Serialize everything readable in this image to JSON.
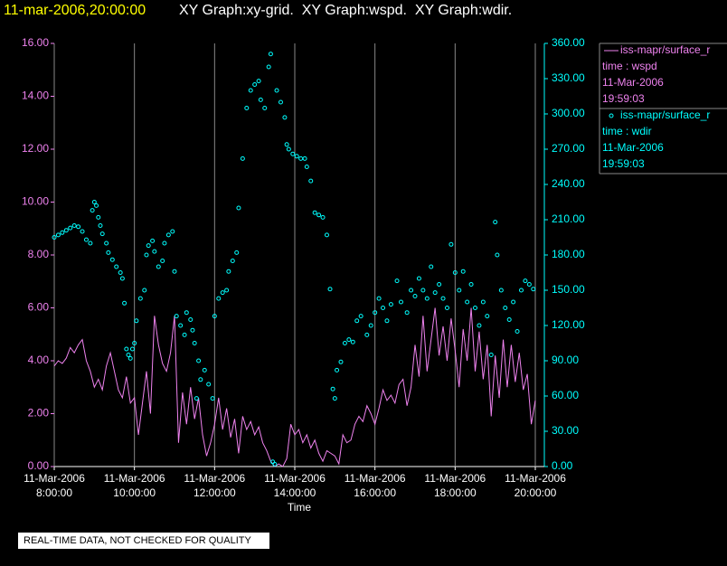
{
  "header": {
    "timestamp": "11-mar-2006,20:00:00",
    "title": "XY Graph:xy-grid.  XY Graph:wspd.  XY Graph:wdir."
  },
  "footer_note": "REAL-TIME DATA, NOT CHECKED FOR QUALITY",
  "chart_data": {
    "type": "line",
    "xlabel": "Time",
    "xlim": [
      8,
      20
    ],
    "xticks": [
      {
        "value": 8,
        "label": "11-Mar-2006 8:00:00"
      },
      {
        "value": 10,
        "label": "11-Mar-2006 10:00:00"
      },
      {
        "value": 12,
        "label": "11-Mar-2006 12:00:00"
      },
      {
        "value": 14,
        "label": "11-Mar-2006 14:00:00"
      },
      {
        "value": 16,
        "label": "11-Mar-2006 16:00:00"
      },
      {
        "value": 18,
        "label": "11-Mar-2006 18:00:00"
      },
      {
        "value": 20,
        "label": "11-Mar-2006 20:00:00"
      }
    ],
    "ylim": [
      0,
      16
    ],
    "yticks": [
      {
        "value": 0,
        "label": "0.00"
      },
      {
        "value": 2,
        "label": "2.00"
      },
      {
        "value": 4,
        "label": "4.00"
      },
      {
        "value": 6,
        "label": "6.00"
      },
      {
        "value": 8,
        "label": "8.00"
      },
      {
        "value": 10,
        "label": "10.00"
      },
      {
        "value": 12,
        "label": "12.00"
      },
      {
        "value": 14,
        "label": "14.00"
      },
      {
        "value": 16,
        "label": "16.00"
      }
    ],
    "y2lim": [
      0,
      360
    ],
    "y2ticks": [
      {
        "value": 0,
        "label": "0.00"
      },
      {
        "value": 30,
        "label": "30.00"
      },
      {
        "value": 60,
        "label": "60.00"
      },
      {
        "value": 90,
        "label": "90.00"
      },
      {
        "value": 120,
        "label": "120.00"
      },
      {
        "value": 150,
        "label": "150.00"
      },
      {
        "value": 180,
        "label": "180.00"
      },
      {
        "value": 210,
        "label": "210.00"
      },
      {
        "value": 240,
        "label": "240.00"
      },
      {
        "value": 270,
        "label": "270.00"
      },
      {
        "value": 300,
        "label": "300.00"
      },
      {
        "value": 330,
        "label": "330.00"
      },
      {
        "value": 360,
        "label": "360.00"
      }
    ],
    "grid": true,
    "legend": "right",
    "series": [
      {
        "name": "iss-mapr/surface_r",
        "type": "line",
        "color": "#ee82ee",
        "legend_lines": [
          "time : wspd",
          "11-Mar-2006",
          "19:59:03"
        ],
        "x": [
          8,
          8.1,
          8.2,
          8.3,
          8.4,
          8.5,
          8.6,
          8.7,
          8.8,
          8.9,
          9,
          9.1,
          9.2,
          9.3,
          9.4,
          9.5,
          9.6,
          9.7,
          9.8,
          9.9,
          10,
          10.1,
          10.2,
          10.3,
          10.4,
          10.5,
          10.6,
          10.7,
          10.8,
          10.9,
          11,
          11.1,
          11.2,
          11.3,
          11.4,
          11.5,
          11.6,
          11.7,
          11.8,
          11.9,
          12,
          12.1,
          12.2,
          12.3,
          12.4,
          12.5,
          12.6,
          12.7,
          12.8,
          12.9,
          13,
          13.1,
          13.2,
          13.3,
          13.4,
          13.5,
          13.6,
          13.7,
          13.8,
          13.9,
          14,
          14.1,
          14.2,
          14.3,
          14.4,
          14.5,
          14.6,
          14.7,
          14.8,
          14.9,
          15,
          15.1,
          15.2,
          15.3,
          15.4,
          15.5,
          15.6,
          15.7,
          15.8,
          15.9,
          16,
          16.1,
          16.2,
          16.3,
          16.4,
          16.5,
          16.6,
          16.7,
          16.8,
          16.9,
          17,
          17.1,
          17.2,
          17.3,
          17.4,
          17.5,
          17.6,
          17.7,
          17.8,
          17.9,
          18,
          18.1,
          18.2,
          18.3,
          18.4,
          18.5,
          18.6,
          18.7,
          18.8,
          18.9,
          19,
          19.1,
          19.2,
          19.3,
          19.4,
          19.5,
          19.6,
          19.7,
          19.8,
          19.9,
          20
        ],
        "values": [
          3.8,
          4.0,
          3.9,
          4.1,
          4.5,
          4.3,
          4.6,
          4.8,
          4.0,
          3.6,
          3.0,
          3.3,
          2.9,
          3.8,
          4.3,
          3.6,
          2.9,
          2.6,
          3.4,
          2.4,
          2.6,
          1.2,
          2.4,
          3.6,
          2.0,
          5.7,
          4.6,
          3.9,
          3.6,
          4.3,
          5.7,
          0.9,
          2.8,
          1.6,
          3.0,
          1.8,
          2.6,
          1.2,
          0.4,
          0.9,
          1.6,
          2.6,
          1.4,
          2.2,
          1.1,
          1.8,
          0.5,
          1.9,
          1.4,
          1.7,
          1.2,
          1.5,
          0.9,
          0.6,
          0.2,
          0.0,
          0.1,
          0.0,
          0.3,
          1.6,
          1.2,
          1.4,
          0.9,
          1.2,
          0.7,
          1.0,
          0.5,
          0.2,
          0.6,
          0.5,
          0.4,
          0.1,
          1.2,
          0.9,
          1.0,
          1.6,
          1.9,
          1.7,
          2.3,
          2.0,
          1.6,
          2.2,
          2.9,
          2.5,
          2.7,
          2.4,
          3.1,
          3.3,
          2.3,
          3.0,
          4.6,
          3.4,
          5.7,
          3.6,
          4.8,
          6.0,
          4.2,
          5.3,
          4.0,
          5.6,
          4.4,
          3.0,
          5.2,
          4.0,
          6.0,
          3.6,
          5.1,
          3.3,
          4.6,
          1.9,
          4.2,
          2.6,
          4.8,
          3.0,
          4.6,
          3.2,
          4.3,
          2.9,
          3.5,
          1.6,
          2.5
        ]
      },
      {
        "name": "iss-mapr/surface_r",
        "type": "scatter",
        "axis": "y2",
        "color": "#00ffff",
        "legend_lines": [
          "time : wdir",
          "11-Mar-2006",
          "19:59:03"
        ],
        "x": [
          8,
          8.1,
          8.2,
          8.3,
          8.4,
          8.5,
          8.6,
          8.7,
          8.8,
          8.9,
          8.95,
          9,
          9.05,
          9.1,
          9.15,
          9.2,
          9.3,
          9.35,
          9.45,
          9.55,
          9.65,
          9.7,
          9.75,
          9.8,
          9.85,
          9.9,
          9.95,
          10,
          10.05,
          10.15,
          10.25,
          10.3,
          10.35,
          10.45,
          10.5,
          10.6,
          10.7,
          10.75,
          10.85,
          10.95,
          11,
          11.05,
          11.15,
          11.25,
          11.3,
          11.4,
          11.45,
          11.5,
          11.55,
          11.6,
          11.65,
          11.75,
          11.85,
          11.95,
          12,
          12.1,
          12.2,
          12.3,
          12.35,
          12.45,
          12.55,
          12.6,
          12.7,
          12.8,
          12.9,
          13,
          13.1,
          13.15,
          13.25,
          13.35,
          13.4,
          13.45,
          13.5,
          13.55,
          13.65,
          13.75,
          13.8,
          13.85,
          13.95,
          14.05,
          14.15,
          14.25,
          14.3,
          14.4,
          14.5,
          14.6,
          14.7,
          14.8,
          14.88,
          14.95,
          15,
          15.05,
          15.15,
          15.25,
          15.35,
          15.45,
          15.55,
          15.65,
          15.8,
          15.9,
          16,
          16.1,
          16.2,
          16.3,
          16.4,
          16.55,
          16.65,
          16.8,
          16.9,
          17,
          17.1,
          17.2,
          17.3,
          17.4,
          17.5,
          17.6,
          17.7,
          17.8,
          17.9,
          18,
          18.1,
          18.2,
          18.3,
          18.4,
          18.5,
          18.6,
          18.7,
          18.8,
          18.9,
          19,
          19.05,
          19.15,
          19.25,
          19.35,
          19.45,
          19.55,
          19.65,
          19.75,
          19.85,
          19.95
        ],
        "values": [
          195,
          197,
          199,
          201,
          203,
          205,
          204,
          200,
          193,
          190,
          218,
          225,
          222,
          212,
          205,
          198,
          190,
          182,
          176,
          170,
          165,
          160,
          139,
          100,
          95,
          92,
          100,
          105,
          124,
          143,
          150,
          180,
          188,
          192,
          183,
          170,
          175,
          190,
          197,
          200,
          166,
          128,
          120,
          112,
          131,
          125,
          116,
          105,
          58,
          90,
          74,
          82,
          70,
          58,
          128,
          143,
          148,
          150,
          166,
          175,
          182,
          220,
          262,
          305,
          320,
          325,
          328,
          312,
          305,
          340,
          351,
          4,
          2,
          320,
          310,
          297,
          274,
          270,
          266,
          264,
          262,
          262,
          255,
          243,
          216,
          214,
          212,
          197,
          151,
          66,
          58,
          82,
          89,
          105,
          108,
          106,
          124,
          128,
          112,
          120,
          131,
          143,
          135,
          124,
          138,
          158,
          140,
          131,
          150,
          145,
          160,
          150,
          143,
          170,
          148,
          155,
          143,
          135,
          189,
          165,
          150,
          166,
          140,
          155,
          135,
          120,
          140,
          128,
          95,
          208,
          180,
          150,
          135,
          125,
          140,
          115,
          150,
          158,
          155,
          151
        ]
      }
    ]
  }
}
